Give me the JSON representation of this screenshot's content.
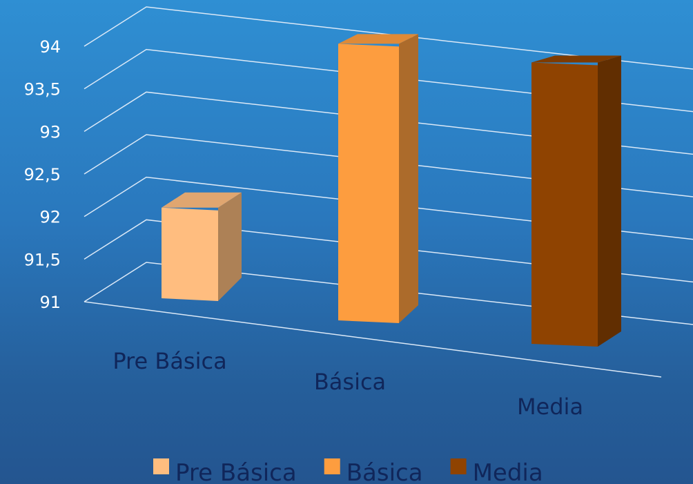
{
  "chart_data": {
    "type": "bar",
    "categories": [
      "Pre Básica",
      "Básica",
      "Media"
    ],
    "series": [
      {
        "name": "Pre Básica",
        "values": [
          91.95,
          null,
          null
        ],
        "color": "#ffbd7f"
      },
      {
        "name": "Básica",
        "values": [
          null,
          93.9,
          null
        ],
        "color": "#fd9d3f"
      },
      {
        "name": "Media",
        "values": [
          null,
          null,
          93.95
        ],
        "color": "#8f4301"
      }
    ],
    "ylim": [
      91,
      94
    ],
    "yticks": [
      "91",
      "91,5",
      "92",
      "92,5",
      "93",
      "93,5",
      "94"
    ],
    "ytick_values": [
      91,
      91.5,
      92,
      92.5,
      93,
      93.5,
      94
    ],
    "grid": true,
    "legend_position": "bottom",
    "style": "3d-column"
  }
}
